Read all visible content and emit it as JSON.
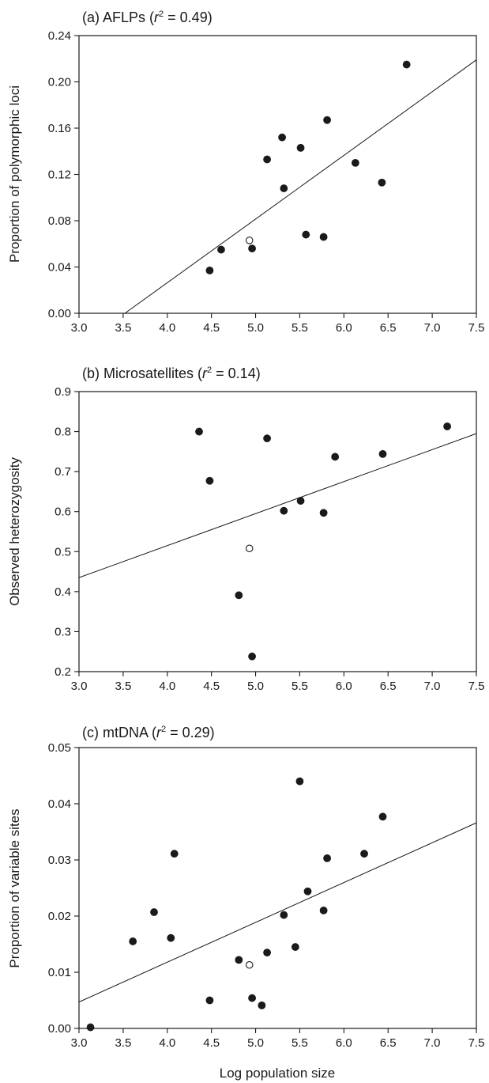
{
  "colors": {
    "ink": "#1a1a1a",
    "background": "#ffffff",
    "open_point_fill": "#ffffff"
  },
  "xlabel": "Log population size",
  "chart_data": [
    {
      "type": "scatter",
      "title_prefix": "(a) AFLPs (",
      "title_r": "r",
      "title_sup": "2",
      "title_suffix": " = 0.49)",
      "ylabel": "Proportion of polymorphic loci",
      "xlim": [
        3.0,
        7.5
      ],
      "ylim": [
        0.0,
        0.24
      ],
      "xticks": [
        "3.0",
        "3.5",
        "4.0",
        "4.5",
        "5.0",
        "5.5",
        "6.0",
        "6.5",
        "7.0",
        "7.5"
      ],
      "yticks": [
        "0.00",
        "0.04",
        "0.08",
        "0.12",
        "0.16",
        "0.20",
        "0.24"
      ],
      "r_squared": 0.49,
      "fit_line": [
        [
          3.52,
          0.0
        ],
        [
          7.5,
          0.219
        ]
      ],
      "points": [
        {
          "x": 4.48,
          "y": 0.037,
          "open": false
        },
        {
          "x": 4.61,
          "y": 0.055,
          "open": false
        },
        {
          "x": 4.93,
          "y": 0.063,
          "open": true
        },
        {
          "x": 4.96,
          "y": 0.056,
          "open": false
        },
        {
          "x": 5.13,
          "y": 0.133,
          "open": false
        },
        {
          "x": 5.3,
          "y": 0.152,
          "open": false
        },
        {
          "x": 5.32,
          "y": 0.108,
          "open": false
        },
        {
          "x": 5.51,
          "y": 0.143,
          "open": false
        },
        {
          "x": 5.57,
          "y": 0.068,
          "open": false
        },
        {
          "x": 5.77,
          "y": 0.066,
          "open": false
        },
        {
          "x": 5.81,
          "y": 0.167,
          "open": false
        },
        {
          "x": 6.13,
          "y": 0.13,
          "open": false
        },
        {
          "x": 6.43,
          "y": 0.113,
          "open": false
        },
        {
          "x": 6.71,
          "y": 0.215,
          "open": false
        }
      ]
    },
    {
      "type": "scatter",
      "title_prefix": "(b) Microsatellites (",
      "title_r": "r",
      "title_sup": "2",
      "title_suffix": " = 0.14)",
      "ylabel": "Observed heterozygosity",
      "xlim": [
        3.0,
        7.5
      ],
      "ylim": [
        0.2,
        0.9
      ],
      "xticks": [
        "3.0",
        "3.5",
        "4.0",
        "4.5",
        "5.0",
        "5.5",
        "6.0",
        "6.5",
        "7.0",
        "7.5"
      ],
      "yticks": [
        "0.2",
        "0.3",
        "0.4",
        "0.5",
        "0.6",
        "0.7",
        "0.8",
        "0.9"
      ],
      "r_squared": 0.14,
      "fit_line": [
        [
          3.0,
          0.435
        ],
        [
          7.5,
          0.795
        ]
      ],
      "points": [
        {
          "x": 4.36,
          "y": 0.8,
          "open": false
        },
        {
          "x": 4.48,
          "y": 0.677,
          "open": false
        },
        {
          "x": 4.81,
          "y": 0.391,
          "open": false
        },
        {
          "x": 4.93,
          "y": 0.508,
          "open": true
        },
        {
          "x": 4.96,
          "y": 0.238,
          "open": false
        },
        {
          "x": 5.13,
          "y": 0.783,
          "open": false
        },
        {
          "x": 5.32,
          "y": 0.602,
          "open": false
        },
        {
          "x": 5.51,
          "y": 0.627,
          "open": false
        },
        {
          "x": 5.77,
          "y": 0.597,
          "open": false
        },
        {
          "x": 5.9,
          "y": 0.737,
          "open": false
        },
        {
          "x": 6.44,
          "y": 0.744,
          "open": false
        },
        {
          "x": 7.17,
          "y": 0.813,
          "open": false
        }
      ]
    },
    {
      "type": "scatter",
      "title_prefix": "(c) mtDNA (",
      "title_r": "r",
      "title_sup": "2",
      "title_suffix": " = 0.29)",
      "ylabel": "Proportion of variable sites",
      "xlim": [
        3.0,
        7.5
      ],
      "ylim": [
        0.0,
        0.05
      ],
      "xticks": [
        "3.0",
        "3.5",
        "4.0",
        "4.5",
        "5.0",
        "5.5",
        "6.0",
        "6.5",
        "7.0",
        "7.5"
      ],
      "yticks": [
        "0.00",
        "0.01",
        "0.02",
        "0.03",
        "0.04",
        "0.05"
      ],
      "r_squared": 0.29,
      "fit_line": [
        [
          3.0,
          0.0047
        ],
        [
          7.5,
          0.0366
        ]
      ],
      "points": [
        {
          "x": 3.13,
          "y": 0.0002,
          "open": false
        },
        {
          "x": 3.61,
          "y": 0.0155,
          "open": false
        },
        {
          "x": 3.85,
          "y": 0.0207,
          "open": false
        },
        {
          "x": 4.04,
          "y": 0.0161,
          "open": false
        },
        {
          "x": 4.08,
          "y": 0.0311,
          "open": false
        },
        {
          "x": 4.48,
          "y": 0.005,
          "open": false
        },
        {
          "x": 4.81,
          "y": 0.0122,
          "open": false
        },
        {
          "x": 4.93,
          "y": 0.0113,
          "open": true
        },
        {
          "x": 4.96,
          "y": 0.0054,
          "open": false
        },
        {
          "x": 5.07,
          "y": 0.0041,
          "open": false
        },
        {
          "x": 5.13,
          "y": 0.0135,
          "open": false
        },
        {
          "x": 5.32,
          "y": 0.0202,
          "open": false
        },
        {
          "x": 5.45,
          "y": 0.0145,
          "open": false
        },
        {
          "x": 5.5,
          "y": 0.044,
          "open": false
        },
        {
          "x": 5.59,
          "y": 0.0244,
          "open": false
        },
        {
          "x": 5.77,
          "y": 0.021,
          "open": false
        },
        {
          "x": 5.81,
          "y": 0.0303,
          "open": false
        },
        {
          "x": 6.23,
          "y": 0.0311,
          "open": false
        },
        {
          "x": 6.44,
          "y": 0.0377,
          "open": false
        }
      ]
    }
  ]
}
